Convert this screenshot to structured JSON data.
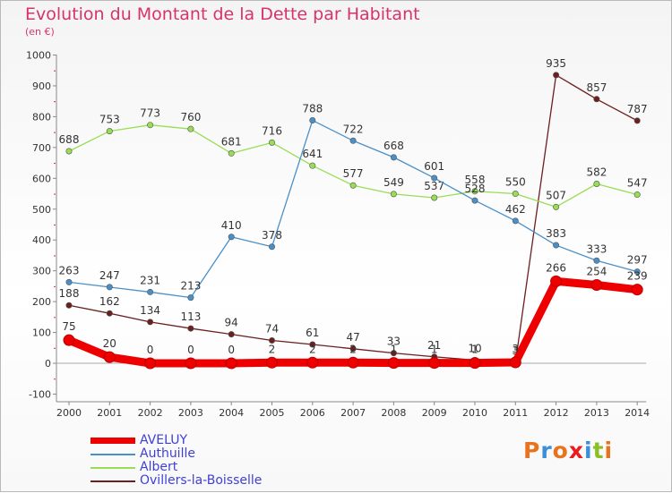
{
  "header": {
    "title": "Evolution du Montant de la Dette par Habitant",
    "subtitle": "(en €)"
  },
  "logo": {
    "text": "Proxiti",
    "colors": [
      "#e8731c",
      "#3b8fd9",
      "#e8731c",
      "#e81c1c",
      "#3b8fd9",
      "#8cbf26",
      "#e8731c"
    ]
  },
  "chart_data": {
    "type": "line",
    "x": [
      2000,
      2001,
      2002,
      2003,
      2004,
      2005,
      2006,
      2007,
      2008,
      2009,
      2010,
      2011,
      2012,
      2013,
      2014
    ],
    "ylim": [
      -100,
      1000
    ],
    "yticks": [
      -100,
      0,
      100,
      200,
      300,
      400,
      500,
      600,
      700,
      800,
      900,
      1000
    ],
    "grid": false,
    "legend_position": "bottom",
    "series": [
      {
        "name": "Ovillers-la-Boisselle",
        "color": "#6b1f1f",
        "values": [
          188,
          162,
          134,
          113,
          94,
          74,
          61,
          47,
          33,
          21,
          10,
          3,
          935,
          857,
          787
        ],
        "labels": [
          "188",
          "162",
          "134",
          "113",
          "94",
          "74",
          "61",
          "47",
          "33",
          "21",
          "10",
          "3",
          "935",
          "857",
          "787"
        ]
      },
      {
        "name": "Albert",
        "color": "#99dd55",
        "values": [
          688,
          753,
          773,
          760,
          681,
          716,
          641,
          577,
          549,
          537,
          558,
          550,
          507,
          582,
          547
        ],
        "labels": [
          "688",
          "753",
          "773",
          "760",
          "681",
          "716",
          "641",
          "577",
          "549",
          "537",
          "558",
          "550",
          "507",
          "582",
          "547"
        ]
      },
      {
        "name": "Authuille",
        "color": "#4a90c8",
        "values": [
          263,
          247,
          231,
          213,
          410,
          378,
          788,
          722,
          668,
          601,
          528,
          462,
          383,
          333,
          297
        ],
        "labels": [
          "263",
          "247",
          "231",
          "213",
          "410",
          "378",
          "788",
          "722",
          "668",
          "601",
          "528",
          "462",
          "383",
          "333",
          "297"
        ]
      },
      {
        "name": "AVELUY",
        "color": "#ee0000",
        "values": [
          75,
          20,
          0,
          0,
          0,
          2,
          2,
          2,
          1,
          1,
          1,
          3,
          266,
          254,
          239
        ],
        "labels": [
          "75",
          "20",
          "0",
          "0",
          "0",
          "2",
          "2",
          "2",
          "1",
          "1",
          "1",
          "3",
          "266",
          "254",
          "239"
        ]
      }
    ],
    "legend": [
      "AVELUY",
      "Authuille",
      "Albert",
      "Ovillers-la-Boisselle"
    ]
  }
}
